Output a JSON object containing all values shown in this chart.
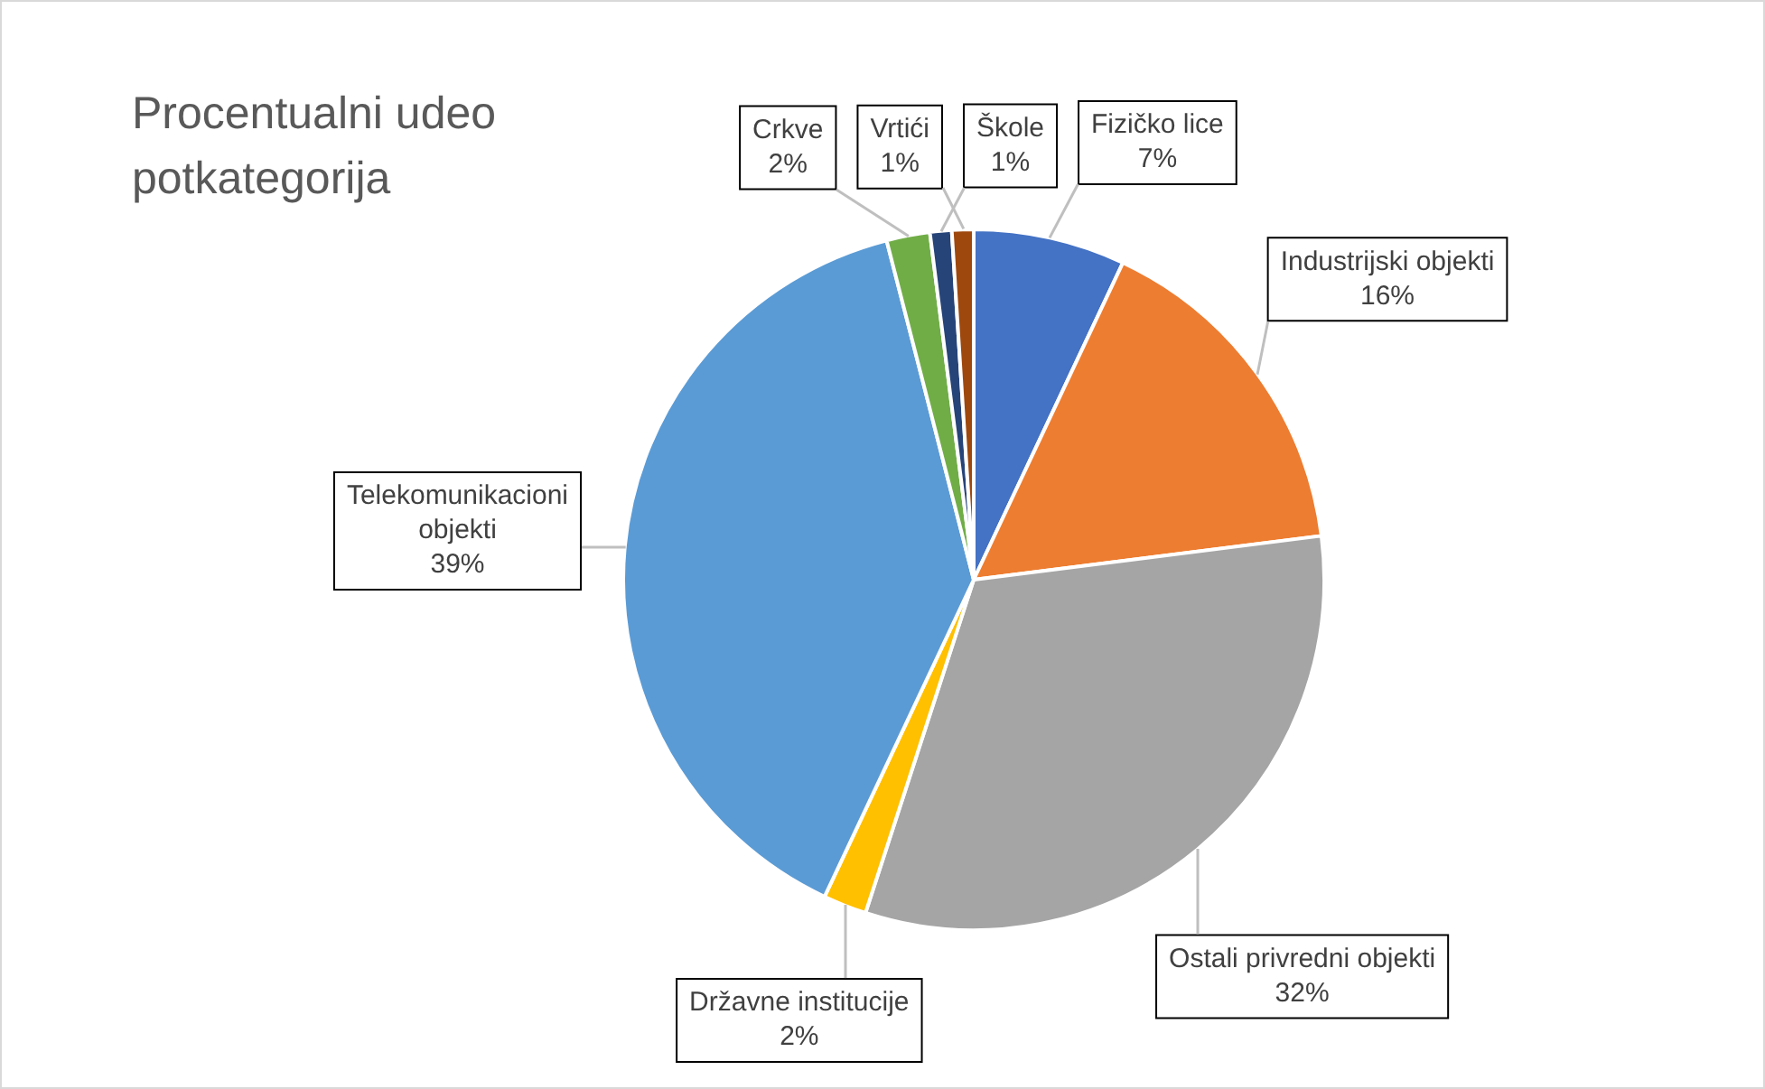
{
  "chart_data": {
    "type": "pie",
    "title": "Procentualni udeo potkategorija",
    "categories": [
      "Fizičko lice",
      "Industrijski objekti",
      "Ostali privredni objekti",
      "Državne institucije",
      "Telekomunikacioni objekti",
      "Crkve",
      "Škole",
      "Vrtići"
    ],
    "values": [
      7,
      16,
      32,
      2,
      39,
      2,
      1,
      1
    ],
    "value_labels": [
      "7%",
      "16%",
      "32%",
      "2%",
      "39%",
      "2%",
      "1%",
      "1%"
    ],
    "colors": [
      "#4472c4",
      "#ed7d31",
      "#a5a5a5",
      "#ffc000",
      "#5b9bd5",
      "#70ad47",
      "#264478",
      "#9e480e"
    ],
    "legend": false
  }
}
